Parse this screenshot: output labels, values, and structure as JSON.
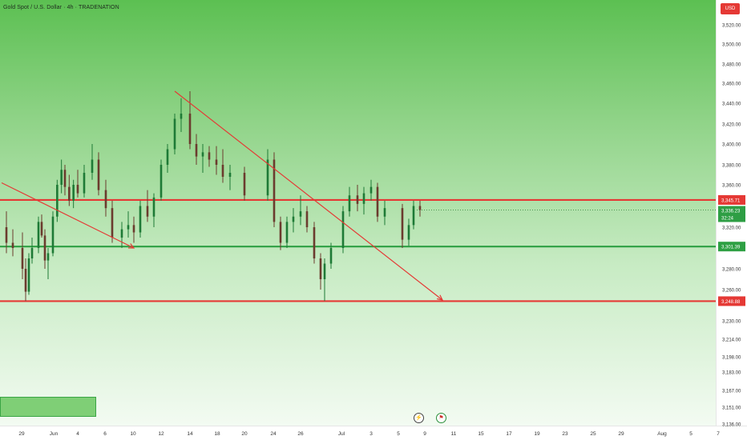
{
  "header": {
    "title": "Gold Spot / U.S. Dollar · 4h · TRADENATION",
    "currency_badge": "USD"
  },
  "colors": {
    "bg_top": "#5cc052",
    "bg_bottom": "#f3fbf2",
    "resistance": "#e53935",
    "support": "#2ea043",
    "candle_up": "#1e7a36",
    "candle_down": "#6b3b2e",
    "trendline": "#e53935",
    "arrow": "#e53935"
  },
  "icons": [
    "lightning-event-icon",
    "flag-event-icon"
  ],
  "chart_data": {
    "type": "candlestick",
    "title": "Gold Spot / U.S. Dollar · 4h · TRADENATION",
    "xlabel": "",
    "ylabel": "",
    "x_ticks": [
      "29",
      "Jun",
      "4",
      "6",
      "10",
      "12",
      "14",
      "18",
      "20",
      "24",
      "26",
      "Jul",
      "3",
      "5",
      "9",
      "11",
      "15",
      "17",
      "19",
      "23",
      "25",
      "29",
      "Aug",
      "5",
      "7"
    ],
    "y_ticks": [
      "3,520.00",
      "3,500.00",
      "3,480.00",
      "3,460.00",
      "3,440.00",
      "3,420.00",
      "3,400.00",
      "3,380.00",
      "3,360.00",
      "3,320.00",
      "3,280.00",
      "3,260.00",
      "3,230.00",
      "3,214.00",
      "3,198.00",
      "3,183.00",
      "3,167.00",
      "3,151.00",
      "3,136.00"
    ],
    "y_tick_values": [
      3520,
      3500,
      3480,
      3460,
      3440,
      3420,
      3400,
      3380,
      3360,
      3320,
      3280,
      3260,
      3230,
      3214,
      3198,
      3183,
      3167,
      3151,
      3136
    ],
    "scale": "log",
    "horizontal_levels": [
      {
        "label": "3,345.71",
        "value": 3345.71,
        "color": "#e53935"
      },
      {
        "label": "3,301.39",
        "value": 3301.39,
        "color": "#2ea043"
      },
      {
        "label": "3,248.88",
        "value": 3248.88,
        "color": "#e53935"
      }
    ],
    "last_price": {
      "label": "3,336.23",
      "countdown": "32:24",
      "value": 3336.23
    },
    "candles": [
      {
        "t": "May 28",
        "o": 3320,
        "h": 3335,
        "l": 3295,
        "c": 3305
      },
      {
        "t": "May 28",
        "o": 3305,
        "h": 3318,
        "l": 3292,
        "c": 3300
      },
      {
        "t": "May 29",
        "o": 3300,
        "h": 3315,
        "l": 3270,
        "c": 3280
      },
      {
        "t": "May 29",
        "o": 3280,
        "h": 3290,
        "l": 3249,
        "c": 3258
      },
      {
        "t": "May 29",
        "o": 3258,
        "h": 3295,
        "l": 3255,
        "c": 3290
      },
      {
        "t": "May 29",
        "o": 3290,
        "h": 3310,
        "l": 3285,
        "c": 3300
      },
      {
        "t": "May 30",
        "o": 3300,
        "h": 3330,
        "l": 3295,
        "c": 3325
      },
      {
        "t": "May 30",
        "o": 3325,
        "h": 3332,
        "l": 3310,
        "c": 3312
      },
      {
        "t": "May 30",
        "o": 3312,
        "h": 3318,
        "l": 3280,
        "c": 3288
      },
      {
        "t": "May 30",
        "o": 3288,
        "h": 3300,
        "l": 3270,
        "c": 3295
      },
      {
        "t": "Jun 2",
        "o": 3295,
        "h": 3335,
        "l": 3292,
        "c": 3330
      },
      {
        "t": "Jun 2",
        "o": 3330,
        "h": 3365,
        "l": 3325,
        "c": 3360
      },
      {
        "t": "Jun 2",
        "o": 3360,
        "h": 3385,
        "l": 3352,
        "c": 3375
      },
      {
        "t": "Jun 3",
        "o": 3375,
        "h": 3380,
        "l": 3350,
        "c": 3358
      },
      {
        "t": "Jun 3",
        "o": 3358,
        "h": 3370,
        "l": 3340,
        "c": 3345
      },
      {
        "t": "Jun 3",
        "o": 3345,
        "h": 3365,
        "l": 3338,
        "c": 3360
      },
      {
        "t": "Jun 4",
        "o": 3360,
        "h": 3375,
        "l": 3348,
        "c": 3352
      },
      {
        "t": "Jun 4",
        "o": 3352,
        "h": 3380,
        "l": 3348,
        "c": 3372
      },
      {
        "t": "Jun 5",
        "o": 3372,
        "h": 3400,
        "l": 3365,
        "c": 3385
      },
      {
        "t": "Jun 5",
        "o": 3385,
        "h": 3392,
        "l": 3350,
        "c": 3355
      },
      {
        "t": "Jun 6",
        "o": 3355,
        "h": 3365,
        "l": 3330,
        "c": 3338
      },
      {
        "t": "Jun 6",
        "o": 3338,
        "h": 3345,
        "l": 3305,
        "c": 3310
      },
      {
        "t": "Jun 9",
        "o": 3310,
        "h": 3325,
        "l": 3300,
        "c": 3318
      },
      {
        "t": "Jun 9",
        "o": 3318,
        "h": 3335,
        "l": 3310,
        "c": 3322
      },
      {
        "t": "Jun 10",
        "o": 3322,
        "h": 3330,
        "l": 3305,
        "c": 3315
      },
      {
        "t": "Jun 10",
        "o": 3315,
        "h": 3345,
        "l": 3310,
        "c": 3340
      },
      {
        "t": "Jun 11",
        "o": 3340,
        "h": 3355,
        "l": 3325,
        "c": 3330
      },
      {
        "t": "Jun 11",
        "o": 3330,
        "h": 3352,
        "l": 3320,
        "c": 3348
      },
      {
        "t": "Jun 12",
        "o": 3348,
        "h": 3385,
        "l": 3345,
        "c": 3380
      },
      {
        "t": "Jun 12",
        "o": 3380,
        "h": 3400,
        "l": 3372,
        "c": 3395
      },
      {
        "t": "Jun 13",
        "o": 3395,
        "h": 3430,
        "l": 3390,
        "c": 3425
      },
      {
        "t": "Jun 13",
        "o": 3425,
        "h": 3445,
        "l": 3412,
        "c": 3430
      },
      {
        "t": "Jun 16",
        "o": 3430,
        "h": 3452,
        "l": 3395,
        "c": 3400
      },
      {
        "t": "Jun 16",
        "o": 3400,
        "h": 3410,
        "l": 3380,
        "c": 3388
      },
      {
        "t": "Jun 17",
        "o": 3388,
        "h": 3400,
        "l": 3372,
        "c": 3392
      },
      {
        "t": "Jun 17",
        "o": 3392,
        "h": 3398,
        "l": 3378,
        "c": 3385
      },
      {
        "t": "Jun 18",
        "o": 3385,
        "h": 3398,
        "l": 3370,
        "c": 3380
      },
      {
        "t": "Jun 18",
        "o": 3380,
        "h": 3395,
        "l": 3362,
        "c": 3368
      },
      {
        "t": "Jun 19",
        "o": 3368,
        "h": 3380,
        "l": 3355,
        "c": 3372
      },
      {
        "t": "Jun 20",
        "o": 3372,
        "h": 3378,
        "l": 3345,
        "c": 3350
      },
      {
        "t": "Jun 23",
        "o": 3350,
        "h": 3395,
        "l": 3345,
        "c": 3385
      },
      {
        "t": "Jun 23",
        "o": 3385,
        "h": 3392,
        "l": 3360,
        "c": 3365
      },
      {
        "t": "Jun 24",
        "o": 3365,
        "h": 3370,
        "l": 3320,
        "c": 3325
      },
      {
        "t": "Jun 24",
        "o": 3325,
        "h": 3330,
        "l": 3298,
        "c": 3305
      },
      {
        "t": "Jun 25",
        "o": 3305,
        "h": 3330,
        "l": 3300,
        "c": 3325
      },
      {
        "t": "Jun 25",
        "o": 3325,
        "h": 3338,
        "l": 3315,
        "c": 3330
      },
      {
        "t": "Jun 26",
        "o": 3330,
        "h": 3350,
        "l": 3322,
        "c": 3335
      },
      {
        "t": "Jun 26",
        "o": 3335,
        "h": 3340,
        "l": 3315,
        "c": 3320
      },
      {
        "t": "Jun 27",
        "o": 3320,
        "h": 3325,
        "l": 3285,
        "c": 3290
      },
      {
        "t": "Jun 27",
        "o": 3290,
        "h": 3295,
        "l": 3260,
        "c": 3270
      },
      {
        "t": "Jun 30",
        "o": 3270,
        "h": 3290,
        "l": 3249,
        "c": 3285
      },
      {
        "t": "Jun 30",
        "o": 3285,
        "h": 3305,
        "l": 3280,
        "c": 3300
      },
      {
        "t": "Jul 1",
        "o": 3300,
        "h": 3340,
        "l": 3295,
        "c": 3335
      },
      {
        "t": "Jul 1",
        "o": 3335,
        "h": 3358,
        "l": 3330,
        "c": 3350
      },
      {
        "t": "Jul 2",
        "o": 3350,
        "h": 3360,
        "l": 3335,
        "c": 3342
      },
      {
        "t": "Jul 2",
        "o": 3342,
        "h": 3358,
        "l": 3332,
        "c": 3352
      },
      {
        "t": "Jul 3",
        "o": 3352,
        "h": 3365,
        "l": 3345,
        "c": 3358
      },
      {
        "t": "Jul 3",
        "o": 3358,
        "h": 3362,
        "l": 3325,
        "c": 3330
      },
      {
        "t": "Jul 4",
        "o": 3330,
        "h": 3345,
        "l": 3322,
        "c": 3338
      },
      {
        "t": "Jul 7",
        "o": 3338,
        "h": 3342,
        "l": 3300,
        "c": 3308
      },
      {
        "t": "Jul 7",
        "o": 3308,
        "h": 3328,
        "l": 3302,
        "c": 3322
      },
      {
        "t": "Jul 8",
        "o": 3322,
        "h": 3345,
        "l": 3318,
        "c": 3340
      },
      {
        "t": "Jul 8",
        "o": 3340,
        "h": 3345,
        "l": 3330,
        "c": 3336.23
      }
    ],
    "drawings": [
      {
        "type": "trendline",
        "from": {
          "t": "Jun 13",
          "v": 3452
        },
        "to": {
          "t": "Jul 10",
          "v": 3250
        }
      },
      {
        "type": "arrow",
        "from": {
          "t": "May 27",
          "v": 3362
        },
        "to": {
          "t": "Jun 10",
          "v": 3300
        }
      }
    ]
  }
}
